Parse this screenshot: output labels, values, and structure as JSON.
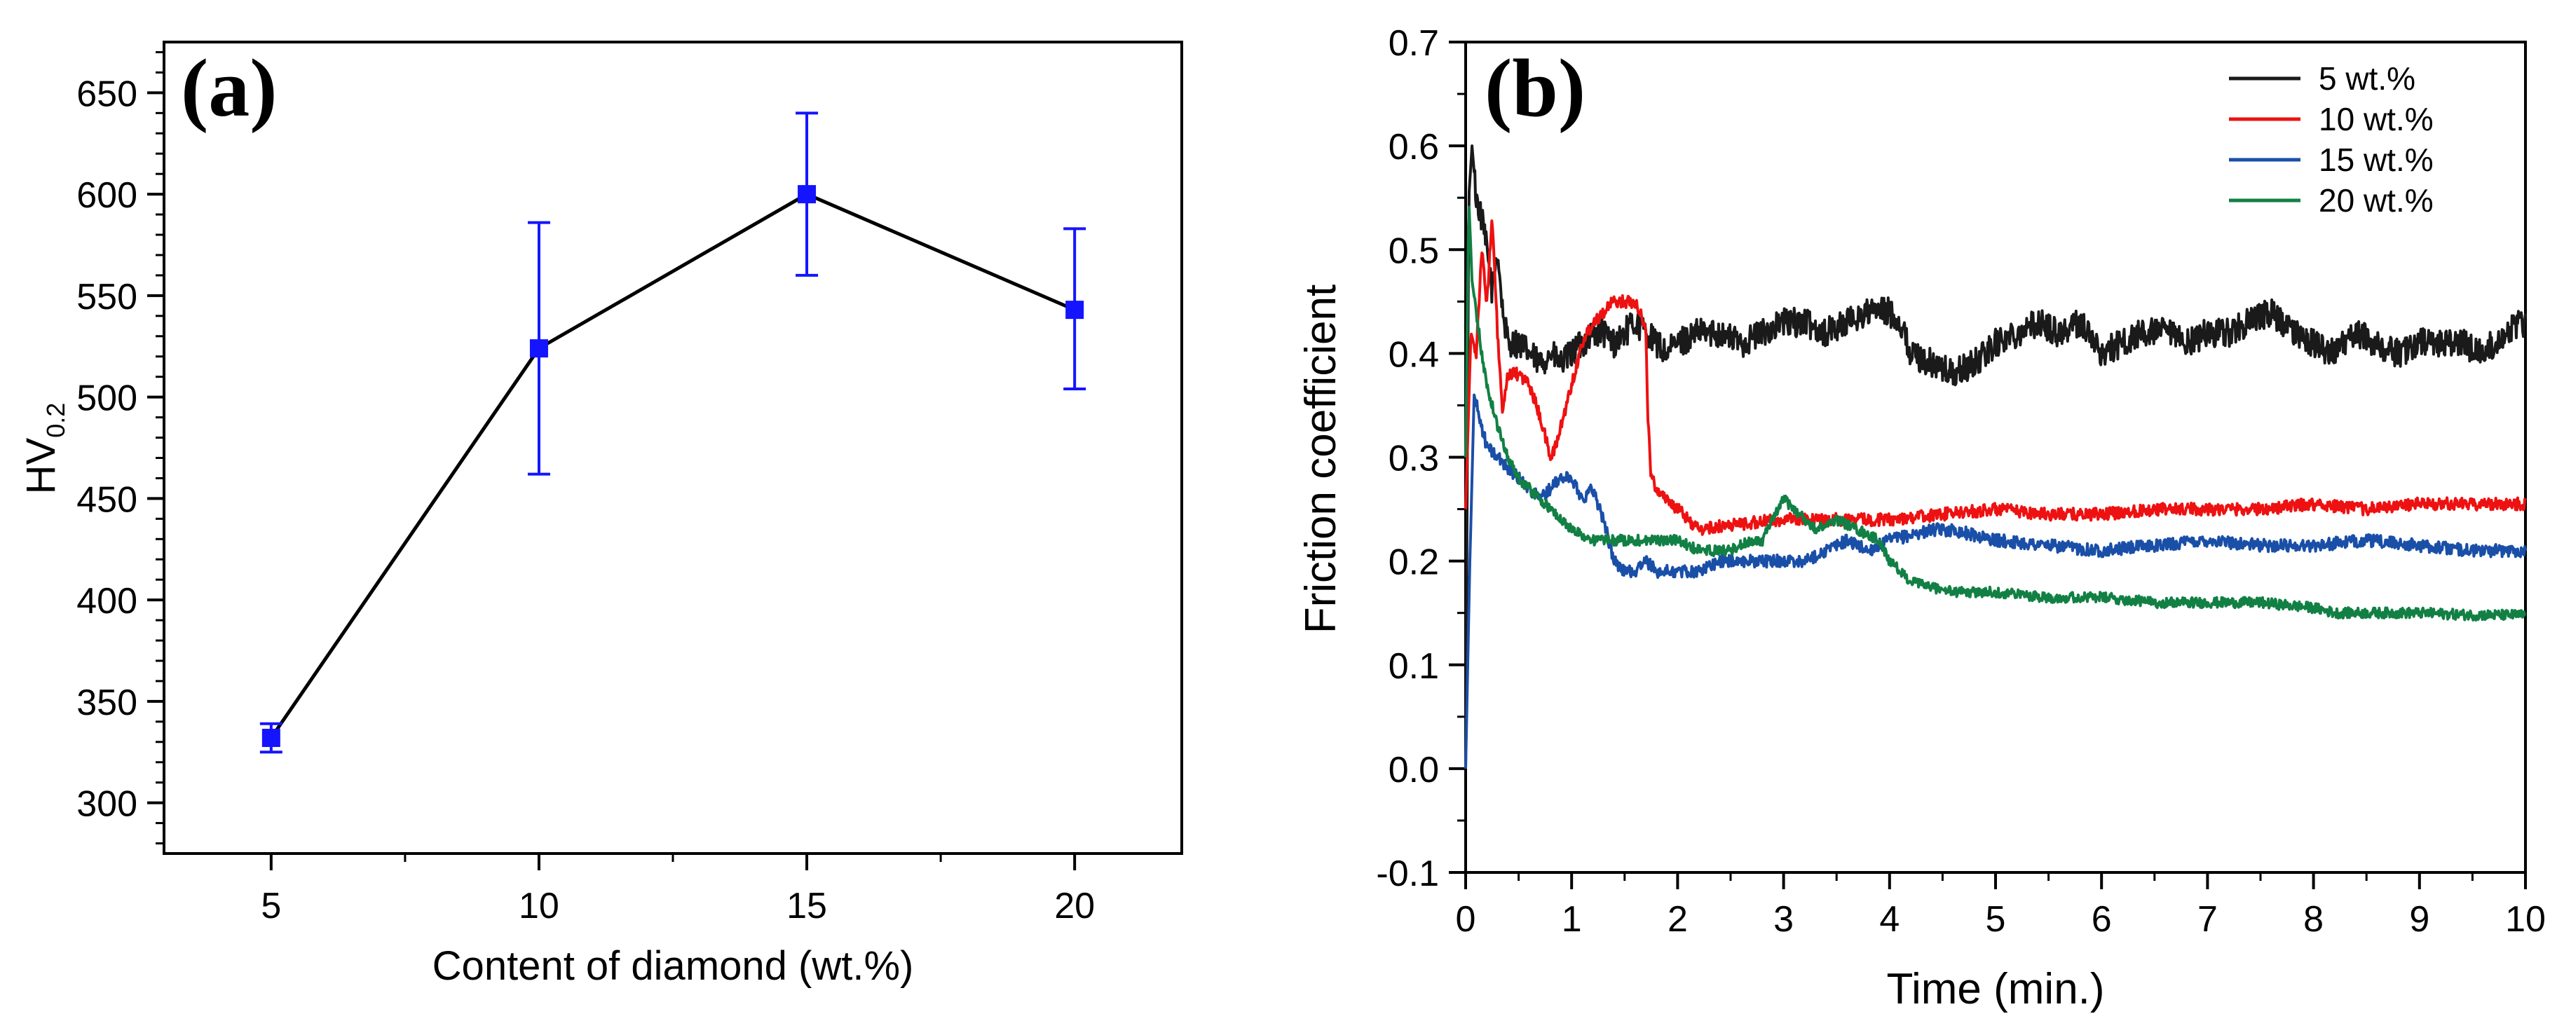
{
  "chart_data": [
    {
      "type": "line",
      "panel_label": "(a)",
      "title": "",
      "xlabel": "Content of diamond (wt.%)",
      "ylabel": "HV",
      "ylabel_subscript": "0.2",
      "xlim": [
        3,
        22
      ],
      "ylim": [
        275,
        675
      ],
      "xticks": [
        5,
        10,
        15,
        20
      ],
      "yticks": [
        300,
        350,
        400,
        450,
        500,
        550,
        600,
        650
      ],
      "series": [
        {
          "name": "HV0.2",
          "color": "#000000",
          "marker_color": "#1414ff",
          "x": [
            5,
            10,
            15,
            20
          ],
          "y": [
            332,
            524,
            600,
            543
          ],
          "error_low": [
            325,
            462,
            560,
            504
          ],
          "error_high": [
            339,
            586,
            640,
            583
          ]
        }
      ]
    },
    {
      "type": "line",
      "panel_label": "(b)",
      "title": "",
      "xlabel": "Time (min.)",
      "ylabel": "Friction coefficient",
      "xlim": [
        0,
        10
      ],
      "ylim": [
        -0.1,
        0.7
      ],
      "xticks": [
        "0",
        "1",
        "2",
        "3",
        "4",
        "5",
        "6",
        "7",
        "8",
        "9",
        "10"
      ],
      "yticks": [
        "-0.1",
        "0.0",
        "0.1",
        "0.2",
        "0.3",
        "0.4",
        "0.5",
        "0.6",
        "0.7"
      ],
      "legend_position": "top-right",
      "series": [
        {
          "name": "5 wt.%",
          "color": "#1a1a1a",
          "noise": 0.014,
          "x": [
            0,
            0.03,
            0.06,
            0.1,
            0.15,
            0.2,
            0.25,
            0.3,
            0.35,
            0.4,
            0.5,
            0.6,
            0.7,
            0.8,
            0.9,
            1.0,
            1.1,
            1.2,
            1.3,
            1.4,
            1.5,
            1.6,
            1.7,
            1.8,
            1.9,
            2.0,
            2.2,
            2.4,
            2.6,
            2.8,
            3.0,
            3.2,
            3.4,
            3.6,
            3.8,
            4.0,
            4.1,
            4.2,
            4.4,
            4.6,
            4.8,
            5.0,
            5.2,
            5.4,
            5.6,
            5.8,
            6.0,
            6.2,
            6.4,
            6.6,
            6.8,
            7.0,
            7.2,
            7.4,
            7.6,
            7.8,
            8.0,
            8.2,
            8.4,
            8.6,
            8.8,
            9.0,
            9.2,
            9.4,
            9.6,
            9.8,
            10.0
          ],
          "y": [
            0.0,
            0.55,
            0.6,
            0.55,
            0.53,
            0.5,
            0.46,
            0.5,
            0.44,
            0.41,
            0.41,
            0.4,
            0.39,
            0.4,
            0.39,
            0.4,
            0.41,
            0.42,
            0.42,
            0.41,
            0.42,
            0.43,
            0.42,
            0.41,
            0.4,
            0.41,
            0.42,
            0.42,
            0.41,
            0.42,
            0.43,
            0.43,
            0.42,
            0.43,
            0.44,
            0.44,
            0.43,
            0.4,
            0.39,
            0.38,
            0.39,
            0.41,
            0.42,
            0.43,
            0.42,
            0.43,
            0.4,
            0.41,
            0.42,
            0.42,
            0.41,
            0.42,
            0.42,
            0.43,
            0.44,
            0.42,
            0.41,
            0.4,
            0.42,
            0.41,
            0.4,
            0.41,
            0.41,
            0.41,
            0.4,
            0.42,
            0.43
          ]
        },
        {
          "name": "10 wt.%",
          "color": "#ee1111",
          "noise": 0.006,
          "x": [
            0,
            0.05,
            0.1,
            0.15,
            0.2,
            0.25,
            0.3,
            0.35,
            0.4,
            0.5,
            0.6,
            0.7,
            0.8,
            0.85,
            0.9,
            1.0,
            1.1,
            1.2,
            1.3,
            1.4,
            1.5,
            1.6,
            1.65,
            1.7,
            1.72,
            1.75,
            1.8,
            1.9,
            2.0,
            2.1,
            2.2,
            2.5,
            3.0,
            3.5,
            4.0,
            4.5,
            5.0,
            5.5,
            6.0,
            6.5,
            7.0,
            7.5,
            8.0,
            8.5,
            9.0,
            9.5,
            10.0
          ],
          "y": [
            0.25,
            0.42,
            0.4,
            0.5,
            0.45,
            0.53,
            0.42,
            0.34,
            0.38,
            0.38,
            0.37,
            0.34,
            0.3,
            0.31,
            0.33,
            0.37,
            0.41,
            0.43,
            0.44,
            0.45,
            0.45,
            0.45,
            0.44,
            0.42,
            0.34,
            0.28,
            0.27,
            0.26,
            0.25,
            0.24,
            0.23,
            0.235,
            0.24,
            0.24,
            0.24,
            0.245,
            0.25,
            0.245,
            0.245,
            0.25,
            0.25,
            0.25,
            0.255,
            0.25,
            0.255,
            0.255,
            0.255
          ]
        },
        {
          "name": "15 wt.%",
          "color": "#1a4fa8",
          "noise": 0.006,
          "x": [
            0,
            0.04,
            0.08,
            0.15,
            0.2,
            0.3,
            0.4,
            0.5,
            0.6,
            0.7,
            0.8,
            0.9,
            1.0,
            1.1,
            1.2,
            1.3,
            1.4,
            1.5,
            1.6,
            1.7,
            1.8,
            2.0,
            2.2,
            2.4,
            2.6,
            2.8,
            3.0,
            3.2,
            3.4,
            3.6,
            3.8,
            4.0,
            4.2,
            4.4,
            4.6,
            5.0,
            5.5,
            6.0,
            6.5,
            7.0,
            7.5,
            8.0,
            8.5,
            9.0,
            9.5,
            10.0
          ],
          "y": [
            0.0,
            0.2,
            0.36,
            0.33,
            0.31,
            0.3,
            0.29,
            0.28,
            0.27,
            0.26,
            0.27,
            0.28,
            0.28,
            0.26,
            0.27,
            0.24,
            0.2,
            0.19,
            0.19,
            0.2,
            0.19,
            0.19,
            0.19,
            0.2,
            0.2,
            0.2,
            0.2,
            0.2,
            0.21,
            0.22,
            0.21,
            0.22,
            0.225,
            0.23,
            0.23,
            0.22,
            0.215,
            0.21,
            0.215,
            0.22,
            0.215,
            0.215,
            0.22,
            0.215,
            0.21,
            0.21
          ]
        },
        {
          "name": "20 wt.%",
          "color": "#128044",
          "noise": 0.005,
          "x": [
            0,
            0.03,
            0.06,
            0.1,
            0.15,
            0.2,
            0.3,
            0.4,
            0.5,
            0.6,
            0.8,
            1.0,
            1.2,
            1.5,
            1.8,
            2.0,
            2.2,
            2.5,
            2.7,
            2.8,
            2.9,
            3.0,
            3.1,
            3.2,
            3.3,
            3.5,
            3.7,
            3.9,
            4.0,
            4.1,
            4.2,
            4.4,
            4.6,
            4.8,
            5.0,
            5.5,
            6.0,
            6.5,
            7.0,
            7.5,
            8.0,
            8.2,
            8.5,
            9.0,
            9.5,
            10.0
          ],
          "y": [
            0.3,
            0.55,
            0.47,
            0.44,
            0.4,
            0.37,
            0.33,
            0.3,
            0.28,
            0.27,
            0.25,
            0.23,
            0.22,
            0.22,
            0.22,
            0.22,
            0.21,
            0.21,
            0.22,
            0.22,
            0.24,
            0.26,
            0.25,
            0.24,
            0.23,
            0.24,
            0.23,
            0.22,
            0.2,
            0.19,
            0.18,
            0.175,
            0.17,
            0.17,
            0.17,
            0.165,
            0.165,
            0.16,
            0.16,
            0.16,
            0.155,
            0.15,
            0.15,
            0.15,
            0.148,
            0.148
          ]
        }
      ]
    }
  ]
}
